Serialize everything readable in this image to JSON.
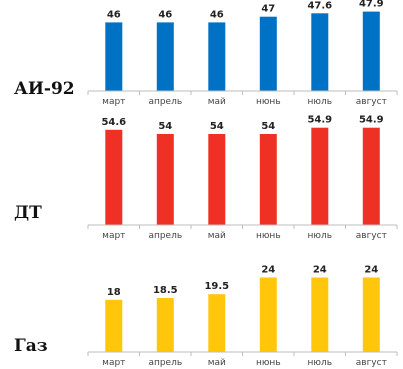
{
  "chart_data": [
    {
      "type": "bar",
      "label": "АИ-92",
      "color": "#0072c6",
      "categories": [
        "март",
        "апрель",
        "май",
        "нюнь",
        "нюль",
        "август"
      ],
      "values": [
        46,
        46,
        46,
        47,
        47.6,
        47.9
      ],
      "value_labels": [
        "46",
        "46",
        "46",
        "47",
        "47.6",
        "47.9"
      ],
      "ylim": [
        34,
        48
      ],
      "grid": false
    },
    {
      "type": "bar",
      "label": "ДТ",
      "color": "#ee3124",
      "categories": [
        "март",
        "апрель",
        "май",
        "нюнь",
        "нюль",
        "август"
      ],
      "values": [
        54.6,
        54,
        54,
        54,
        54.9,
        54.9
      ],
      "value_labels": [
        "54.6",
        "54",
        "54",
        "54",
        "54.9",
        "54.9"
      ],
      "ylim": [
        41,
        55
      ],
      "grid": false
    },
    {
      "type": "bar",
      "label": "Газ",
      "color": "#ffc60b",
      "categories": [
        "март",
        "апрель",
        "май",
        "нюнь",
        "нюль",
        "август"
      ],
      "values": [
        18,
        18.5,
        19.5,
        24,
        24,
        24
      ],
      "value_labels": [
        "18",
        "18.5",
        "19.5",
        "24",
        "24",
        "24"
      ],
      "ylim": [
        4,
        26
      ],
      "grid": false
    }
  ]
}
